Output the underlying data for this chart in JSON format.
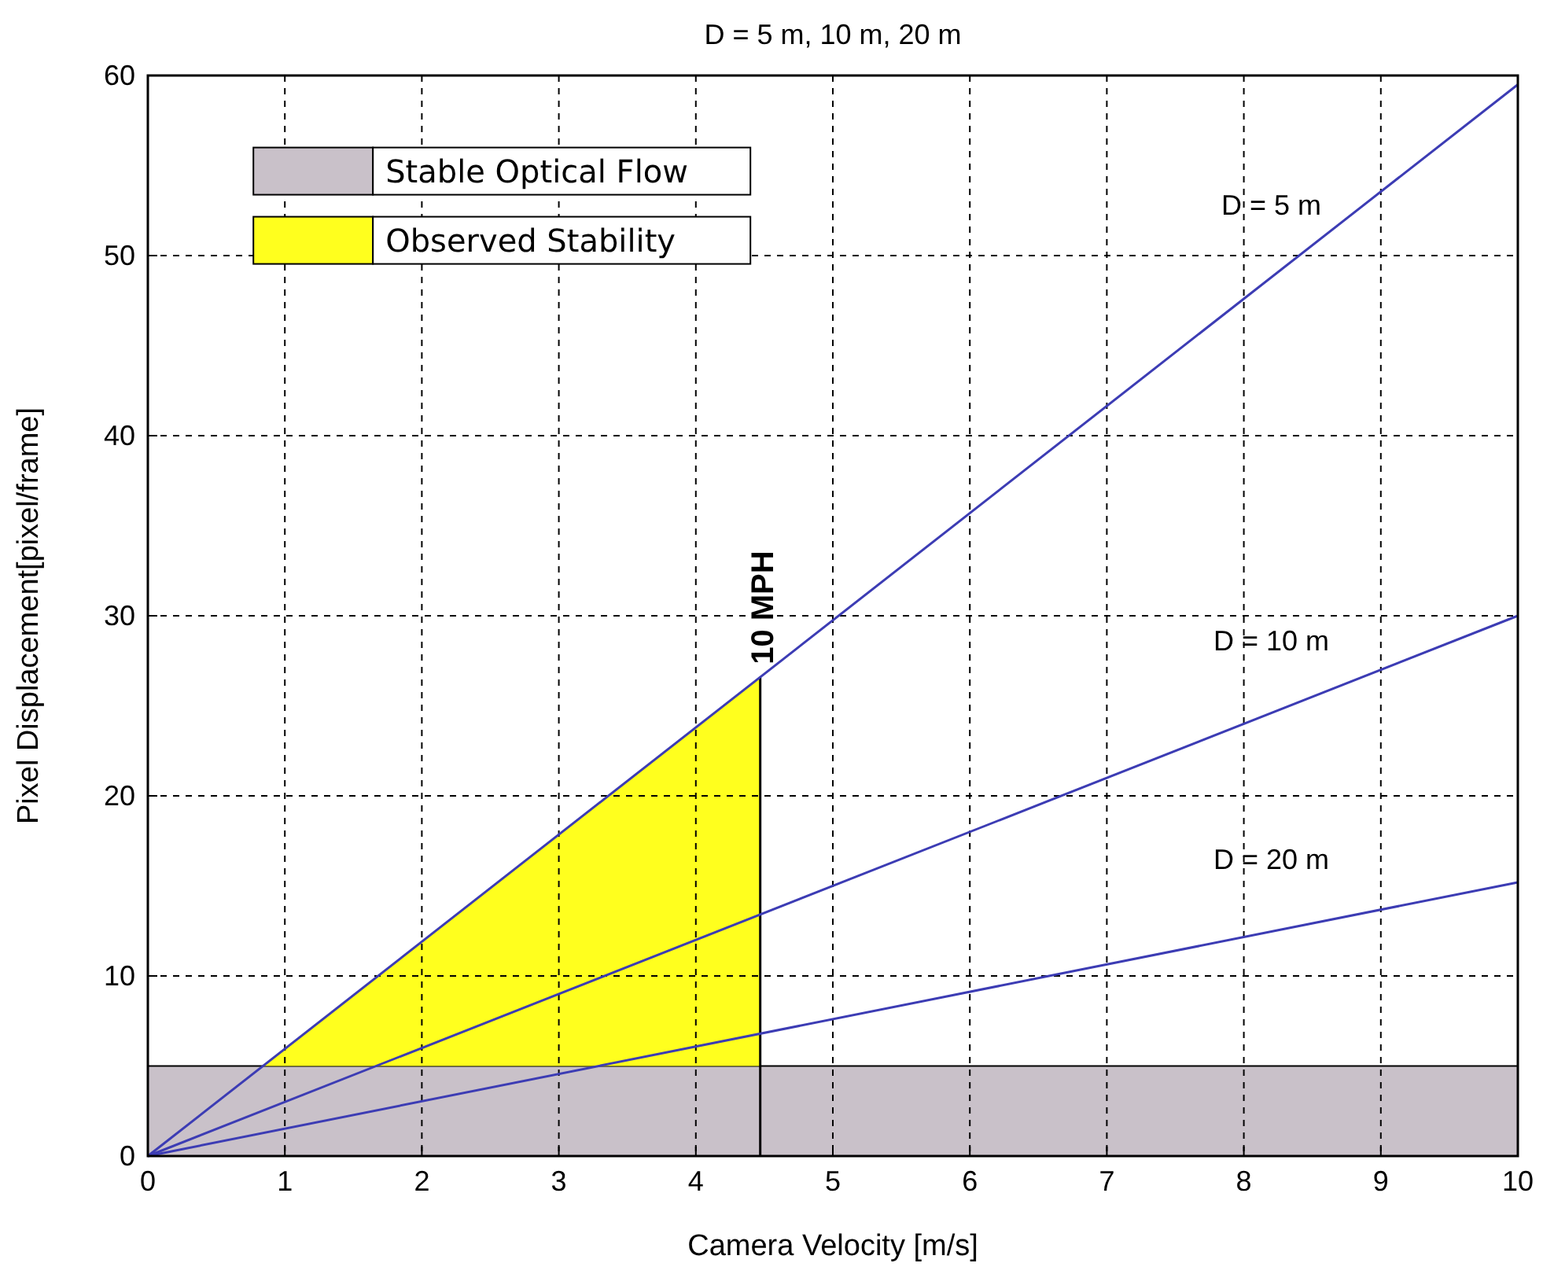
{
  "chart_data": {
    "type": "line",
    "title": "D = 5 m, 10 m, 20 m",
    "xlabel": "Camera Velocity [m/s]",
    "ylabel": "Pixel Displacement[pixel/frame]",
    "xlim": [
      0,
      10
    ],
    "ylim": [
      0,
      60
    ],
    "xticks": [
      0,
      1,
      2,
      3,
      4,
      5,
      6,
      7,
      8,
      9,
      10
    ],
    "yticks": [
      0,
      10,
      20,
      30,
      40,
      50,
      60
    ],
    "grid": true,
    "line_style": "solid",
    "legend": "top left",
    "series": [
      {
        "type": "area",
        "name": "Observed Stability",
        "color": "#ffff1e",
        "x": [
          0.84,
          4.47
        ],
        "values": [
          5,
          26.6
        ]
      },
      {
        "name": "D = 5 m",
        "color": "#3c3cb4",
        "x": [
          0,
          10
        ],
        "values": [
          0,
          59.5
        ]
      },
      {
        "name": "D = 10 m",
        "color": "#3c3cb4",
        "x": [
          0,
          10
        ],
        "values": [
          0,
          30
        ]
      },
      {
        "name": "D = 20 m",
        "color": "#3c3cb4",
        "x": [
          0,
          10
        ],
        "values": [
          0,
          15.2
        ]
      }
    ],
    "bands": [
      {
        "axis": "y",
        "from": 0,
        "to": 5,
        "label": "Stable Optical Flow",
        "color": "#c9c1c9"
      }
    ],
    "ref_lines": [
      {
        "axis": "x",
        "value": 4.47,
        "label": "10 MPH"
      }
    ]
  }
}
